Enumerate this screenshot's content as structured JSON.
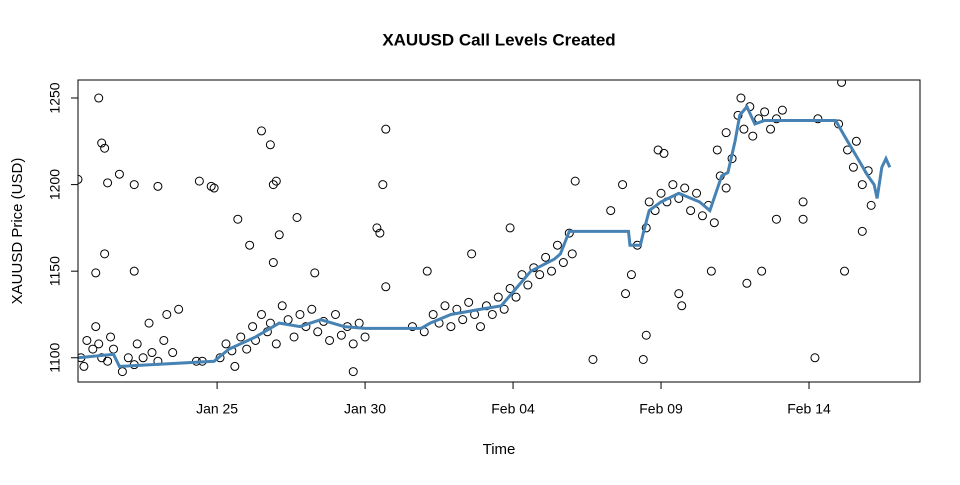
{
  "chart_data": {
    "type": "scatter",
    "title": "XAUUSD Call Levels Created",
    "x_label": "Time",
    "y_label": "XAUUSD Price (USD)",
    "xlim": [
      20.3,
      48.75
    ],
    "ylim": [
      1086,
      1260.4
    ],
    "xticks": [
      {
        "value": 25,
        "label": "Jan 25"
      },
      {
        "value": 30,
        "label": "Jan 30"
      },
      {
        "value": 35,
        "label": "Feb 04"
      },
      {
        "value": 40,
        "label": "Feb 09"
      },
      {
        "value": 45,
        "label": "Feb 14"
      }
    ],
    "yticks": [
      1100,
      1150,
      1200,
      1250
    ],
    "grid": false,
    "series": [
      {
        "type": "scatter",
        "color": "#000000",
        "x": [
          20.3,
          21.0,
          21.1,
          21.2,
          21.3,
          21.2,
          20.9,
          21.7,
          22.2,
          22.2,
          23.0,
          24.4,
          24.8,
          24.9,
          25.7,
          26.1,
          26.5,
          26.8,
          26.9,
          27.0,
          26.9,
          27.1,
          27.7,
          28.3,
          30.7,
          30.6,
          30.4,
          30.5,
          30.7,
          29.6,
          32.1,
          33.6,
          34.9,
          37.1,
          38.3,
          38.7,
          38.8,
          39.0,
          37.7,
          39.4,
          39.5,
          39.9,
          40.1,
          40.6,
          40.7,
          41.7,
          41.9,
          42.2,
          42.9,
          43.4,
          43.9,
          45.2,
          44.8,
          44.8,
          46.2,
          46.8,
          46.1,
          20.4,
          20.5,
          20.6,
          20.8,
          20.9,
          21.0,
          21.1,
          21.3,
          21.4,
          21.5,
          21.8,
          22.0,
          22.2,
          22.3,
          22.5,
          22.7,
          22.8,
          23.0,
          23.2,
          23.3,
          23.5,
          23.7,
          24.3,
          24.5,
          25.1,
          25.3,
          25.5,
          25.6,
          25.8,
          26.0,
          26.2,
          26.3,
          26.5,
          26.7,
          26.8,
          27.0,
          27.2,
          27.4,
          27.6,
          27.8,
          28.0,
          28.2,
          28.4,
          28.6,
          28.8,
          29.0,
          29.2,
          29.4,
          29.6,
          29.8,
          30.0,
          31.6,
          32.0,
          32.3,
          32.5,
          32.7,
          32.9,
          33.1,
          33.3,
          33.5,
          33.7,
          33.9,
          34.1,
          34.3,
          34.5,
          34.7,
          34.9,
          35.1,
          35.3,
          35.5,
          35.7,
          35.9,
          36.1,
          36.3,
          36.5,
          36.7,
          36.9,
          37.0,
          39.2,
          39.5,
          39.6,
          39.8,
          40.0,
          40.2,
          40.4,
          40.6,
          40.8,
          41.0,
          41.2,
          41.4,
          41.6,
          41.8,
          42.0,
          42.2,
          42.4,
          42.6,
          42.7,
          42.8,
          43.0,
          43.1,
          43.3,
          43.5,
          43.7,
          43.9,
          44.1,
          45.3,
          46.0,
          46.3,
          46.5,
          46.6,
          46.8,
          47.0,
          47.1
        ],
        "y": [
          1203,
          1250,
          1224,
          1221,
          1201,
          1160,
          1149,
          1206,
          1150,
          1200,
          1199,
          1202,
          1199,
          1198,
          1180,
          1165,
          1231,
          1223,
          1200,
          1202,
          1155,
          1171,
          1181,
          1149,
          1232,
          1200,
          1175,
          1172,
          1141,
          1092,
          1150,
          1160,
          1175,
          1202,
          1185,
          1200,
          1137,
          1148,
          1099,
          1099,
          1113,
          1220,
          1218,
          1137,
          1130,
          1150,
          1220,
          1230,
          1143,
          1150,
          1180,
          1100,
          1190,
          1180,
          1150,
          1173,
          1259,
          1100,
          1095,
          1110,
          1105,
          1118,
          1108,
          1100,
          1098,
          1112,
          1105,
          1092,
          1100,
          1096,
          1108,
          1100,
          1120,
          1103,
          1098,
          1110,
          1125,
          1103,
          1128,
          1098,
          1098,
          1100,
          1108,
          1104,
          1095,
          1112,
          1105,
          1118,
          1110,
          1125,
          1115,
          1120,
          1108,
          1130,
          1122,
          1112,
          1125,
          1118,
          1128,
          1115,
          1121,
          1110,
          1125,
          1113,
          1118,
          1108,
          1120,
          1112,
          1118,
          1115,
          1125,
          1120,
          1130,
          1118,
          1128,
          1122,
          1132,
          1125,
          1118,
          1130,
          1125,
          1135,
          1128,
          1140,
          1135,
          1148,
          1142,
          1152,
          1148,
          1158,
          1150,
          1165,
          1155,
          1172,
          1160,
          1165,
          1175,
          1190,
          1185,
          1195,
          1190,
          1200,
          1192,
          1198,
          1185,
          1195,
          1182,
          1188,
          1178,
          1205,
          1198,
          1215,
          1240,
          1250,
          1232,
          1245,
          1228,
          1238,
          1242,
          1232,
          1238,
          1243,
          1238,
          1235,
          1220,
          1210,
          1225,
          1200,
          1208,
          1188
        ]
      },
      {
        "type": "line",
        "color": "#4682b4",
        "x": [
          20.3,
          21.5,
          21.7,
          24.9,
          25.4,
          26.3,
          27.1,
          27.8,
          28.5,
          29.3,
          30.0,
          31.9,
          32.2,
          32.9,
          33.9,
          34.6,
          35.1,
          35.6,
          36.4,
          36.6,
          36.9,
          38.9,
          38.95,
          39.3,
          39.4,
          39.6,
          40.0,
          40.6,
          41.3,
          41.65,
          42.05,
          42.26,
          42.5,
          42.66,
          42.9,
          43.17,
          43.5,
          45.9,
          46.2,
          46.65,
          46.99,
          47.2,
          47.3,
          47.46,
          47.6,
          47.73
        ],
        "y": [
          1100,
          1102,
          1095,
          1098,
          1105,
          1112,
          1120,
          1118,
          1122,
          1118,
          1117,
          1117,
          1120,
          1125,
          1128,
          1130,
          1140,
          1150,
          1157,
          1160,
          1173,
          1173,
          1165,
          1165,
          1172,
          1185,
          1190,
          1195,
          1190,
          1185,
          1205,
          1207,
          1225,
          1240,
          1245,
          1235,
          1237,
          1237,
          1228,
          1215,
          1205,
          1200,
          1192,
          1210,
          1215,
          1210
        ]
      }
    ]
  }
}
